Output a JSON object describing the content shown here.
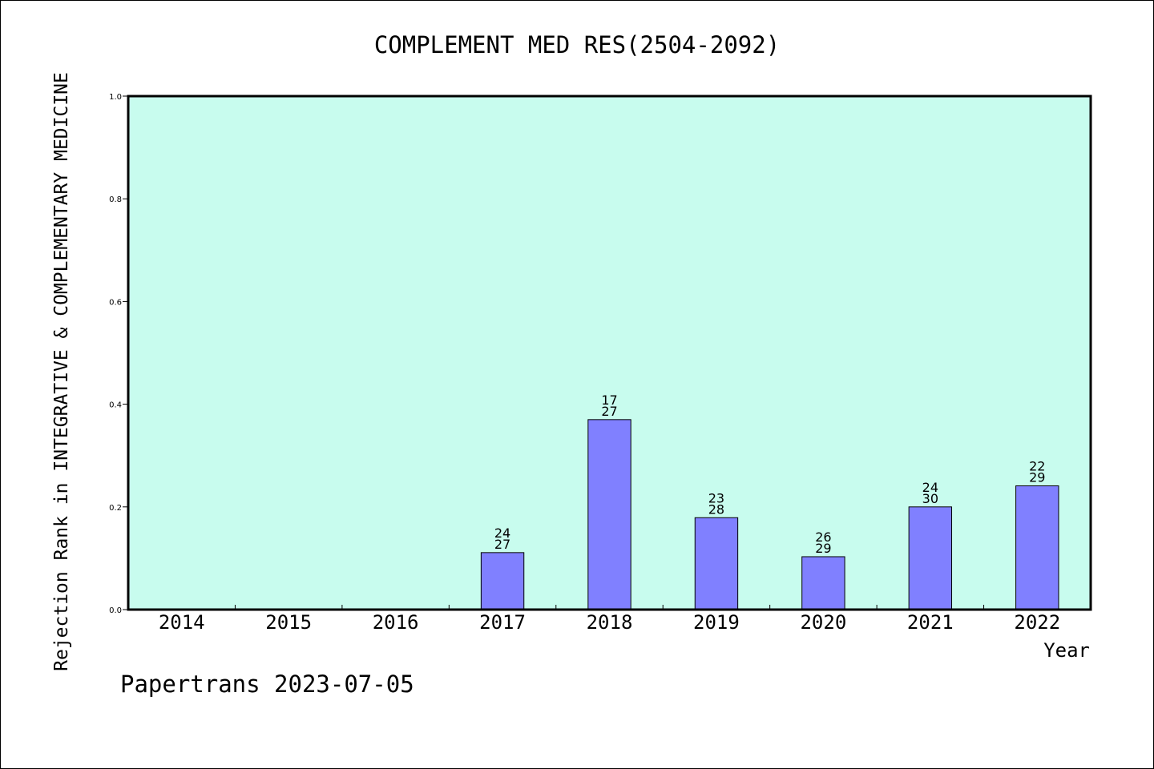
{
  "chart_data": {
    "type": "bar",
    "title": "COMPLEMENT MED RES(2504-2092)",
    "xlabel": "Year",
    "ylabel": "Rejection Rank in INTEGRATIVE & COMPLEMENTARY MEDICINE",
    "categories": [
      "2014",
      "2015",
      "2016",
      "2017",
      "2018",
      "2019",
      "2020",
      "2021",
      "2022"
    ],
    "values": [
      null,
      null,
      null,
      0.111,
      0.37,
      0.179,
      0.103,
      0.2,
      0.241
    ],
    "bar_labels": [
      null,
      null,
      null,
      [
        "24",
        "27"
      ],
      [
        "17",
        "27"
      ],
      [
        "23",
        "28"
      ],
      [
        "26",
        "29"
      ],
      [
        "24",
        "30"
      ],
      [
        "22",
        "29"
      ]
    ],
    "ylim": [
      0,
      1.0
    ],
    "yticks": [
      "0.0",
      "0.2",
      "0.4",
      "0.6",
      "0.8",
      "1.0"
    ],
    "grid": false,
    "legend": "none",
    "plot_background": "#c8fcee",
    "bar_color": "#8080ff"
  },
  "footer": "Papertrans 2023-07-05"
}
